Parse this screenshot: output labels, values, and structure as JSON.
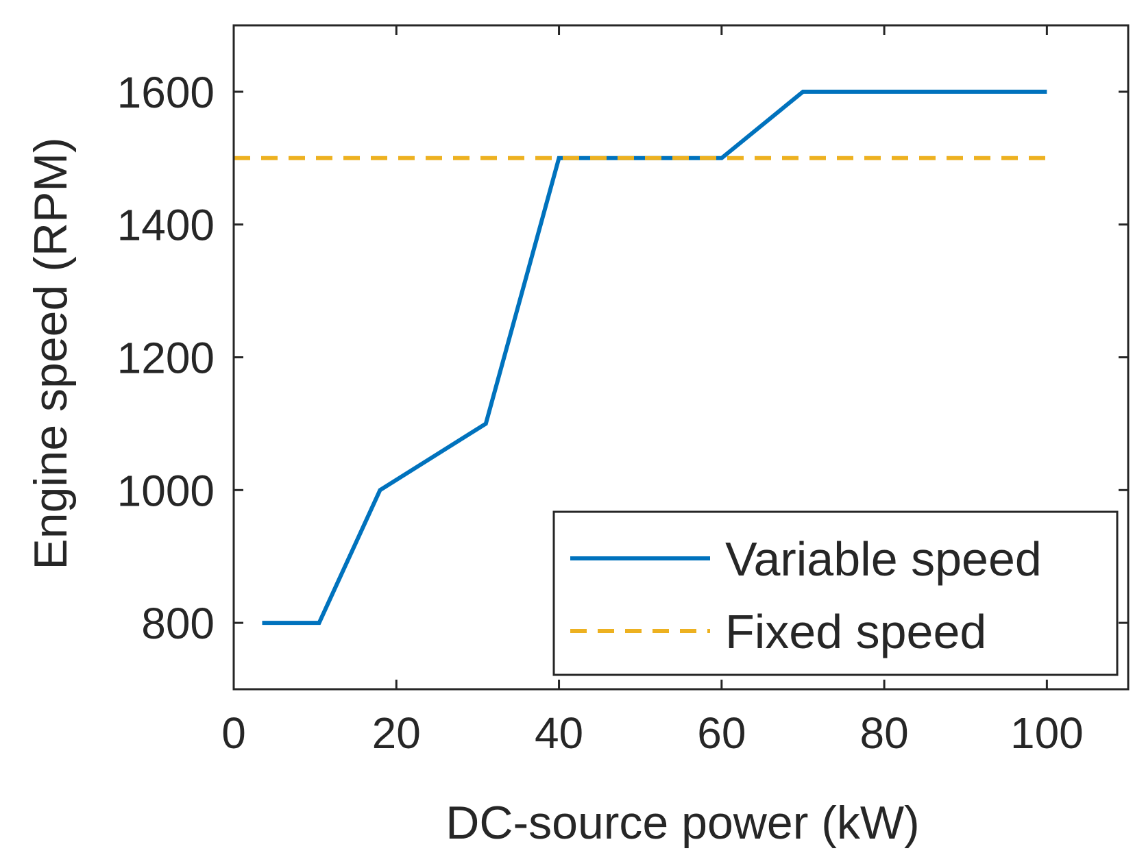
{
  "chart_data": {
    "type": "line",
    "title": "",
    "xlabel": "DC-source power (kW)",
    "ylabel": "Engine speed (RPM)",
    "xlim": [
      0,
      110
    ],
    "ylim": [
      700,
      1700
    ],
    "xticks": [
      0,
      20,
      40,
      60,
      80,
      100
    ],
    "yticks": [
      800,
      1000,
      1200,
      1400,
      1600
    ],
    "grid": false,
    "legend_position": "bottom-right",
    "series": [
      {
        "name": "Variable speed",
        "color": "#0072BD",
        "style": "solid",
        "x": [
          3.5,
          10.5,
          18,
          31,
          40,
          60,
          70,
          100
        ],
        "y": [
          800,
          800,
          1000,
          1100,
          1500,
          1500,
          1600,
          1600
        ]
      },
      {
        "name": "Fixed speed",
        "color": "#EDB120",
        "style": "dashed",
        "x": [
          0,
          100
        ],
        "y": [
          1500,
          1500
        ]
      }
    ]
  }
}
